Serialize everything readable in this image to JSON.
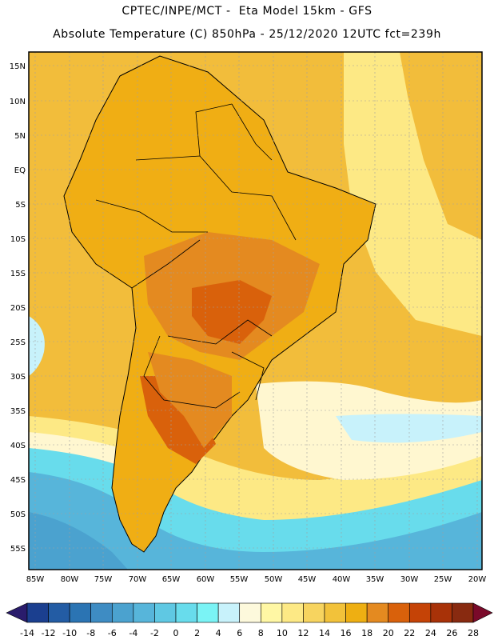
{
  "header": {
    "line1": "CPTEC/INPE/MCT -  Eta Model 15km - GFS",
    "line2": "Absolute Temperature (C) 850hPa - 25/12/2020 12UTC fct=239h"
  },
  "axes": {
    "lat_labels": [
      "15N",
      "10N",
      "5N",
      "EQ",
      "5S",
      "10S",
      "15S",
      "20S",
      "25S",
      "30S",
      "35S",
      "40S",
      "45S",
      "50S",
      "55S"
    ],
    "lon_labels": [
      "85W",
      "80W",
      "75W",
      "70W",
      "65W",
      "60W",
      "55W",
      "50W",
      "45W",
      "40W",
      "35W",
      "30W",
      "25W",
      "20W"
    ]
  },
  "colorbar": {
    "labels": [
      "-14",
      "-12",
      "-10",
      "-8",
      "-6",
      "-4",
      "-2",
      "0",
      "2",
      "4",
      "6",
      "8",
      "10",
      "12",
      "14",
      "16",
      "18",
      "20",
      "22",
      "24",
      "26",
      "28"
    ],
    "colors": [
      "#1b3f8f",
      "#235ca4",
      "#2b74b3",
      "#3e8cc3",
      "#4ba2cf",
      "#57b5da",
      "#5fc8e3",
      "#68dcec",
      "#7af3f5",
      "#c8f2fb",
      "#fdf9dc",
      "#fff7a4",
      "#fde985",
      "#f7d45f",
      "#f2c23a",
      "#eeaf12",
      "#e48a20",
      "#d9610b",
      "#c54306",
      "#a83208",
      "#882a10"
    ],
    "under_color": "#2a1c6c",
    "over_color": "#7a0a2a"
  },
  "colors": {
    "ocean_north": "#f2bd3b",
    "land_base": "#f0ae14",
    "warm_1": "#e48a20",
    "warm_2": "#d9610b",
    "cool_band": "#fde985",
    "pale": "#fff7d0",
    "cyan_light": "#c8f2fb",
    "cyan": "#68dcec",
    "blue_1": "#57b5da",
    "blue_2": "#4ba2cf",
    "blue_3": "#3e8cc3"
  }
}
